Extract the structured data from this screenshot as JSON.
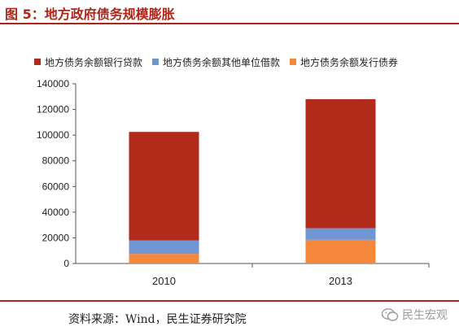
{
  "figure": {
    "title": "图 5：地方政府债务规模膨胀",
    "source": "资料来源：Wind，民生证券研究院",
    "watermark": "民生宏观",
    "watermark_icon": "wechat-icon"
  },
  "chart_data": {
    "type": "bar",
    "stacked": true,
    "title": "",
    "xlabel": "",
    "ylabel": "",
    "categories": [
      "2010",
      "2013"
    ],
    "ylim": [
      0,
      140000
    ],
    "yticks": [
      0,
      20000,
      40000,
      60000,
      80000,
      100000,
      120000,
      140000
    ],
    "ytick_labels": [
      "0",
      "20000",
      "40000",
      "60000",
      "80000",
      "100000",
      "120000",
      "140000"
    ],
    "legend_position": "top",
    "series": [
      {
        "name": "地方债务余额发行债券",
        "color": "#f5883a",
        "values": [
          7500,
          18500
        ]
      },
      {
        "name": "地方债务余额其他单位借款",
        "color": "#6f96d2",
        "values": [
          10500,
          9000
        ]
      },
      {
        "name": "地方债务余额银行贷款",
        "color": "#b22a1a",
        "values": [
          84500,
          100500
        ]
      }
    ],
    "legend_order": [
      "地方债务余额银行贷款",
      "地方债务余额其他单位借款",
      "地方债务余额发行债券"
    ]
  }
}
